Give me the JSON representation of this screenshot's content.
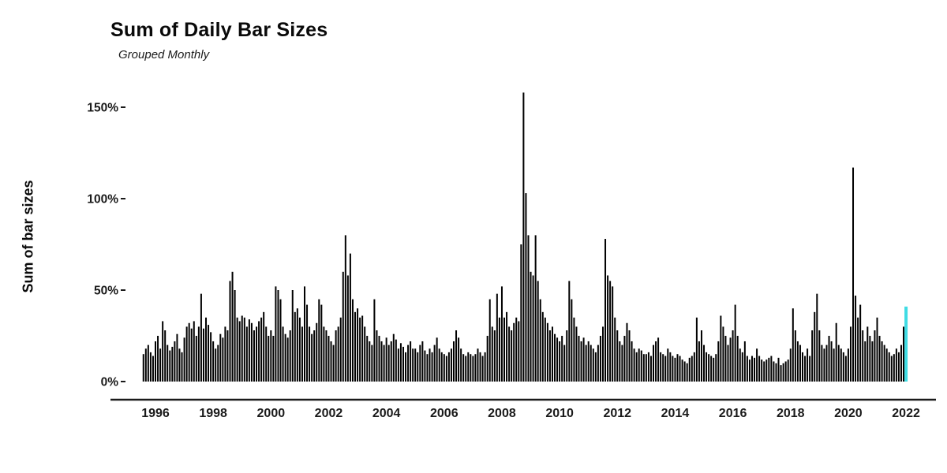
{
  "title": "Sum of Daily Bar Sizes",
  "subtitle": "Grouped Monthly",
  "chart_data": {
    "type": "bar",
    "title": "Sum of Daily Bar Sizes",
    "subtitle": "Grouped Monthly",
    "xlabel": "",
    "ylabel": "Sum of bar sizes",
    "grid": false,
    "legend": "none",
    "unit": "percent",
    "start_month": "1995-08",
    "frequency": "monthly",
    "ylim": [
      0,
      160
    ],
    "y_tick_values": [
      0,
      50,
      100,
      150
    ],
    "y_tick_labels": [
      "0%",
      "50%",
      "100%",
      "150%"
    ],
    "x_tick_years": [
      1996,
      1998,
      2000,
      2002,
      2004,
      2006,
      2008,
      2010,
      2012,
      2014,
      2016,
      2018,
      2020,
      2022
    ],
    "x_tick_labels": [
      "1996",
      "1998",
      "2000",
      "2002",
      "2004",
      "2006",
      "2008",
      "2010",
      "2012",
      "2014",
      "2016",
      "2018",
      "2020",
      "2022"
    ],
    "bar_color": "#000000",
    "highlight_color": "#3FDCE4",
    "highlight_index": 317,
    "axis_color": "#1a1a1a",
    "values": [
      15,
      18,
      20,
      16,
      14,
      22,
      25,
      18,
      33,
      28,
      20,
      17,
      19,
      22,
      26,
      18,
      16,
      24,
      30,
      32,
      29,
      33,
      25,
      30,
      48,
      29,
      35,
      31,
      27,
      22,
      18,
      20,
      26,
      24,
      30,
      28,
      55,
      60,
      50,
      35,
      33,
      36,
      35,
      30,
      34,
      32,
      28,
      30,
      33,
      35,
      38,
      30,
      25,
      28,
      25,
      52,
      50,
      45,
      30,
      26,
      24,
      28,
      50,
      38,
      40,
      35,
      30,
      52,
      42,
      30,
      26,
      28,
      32,
      45,
      42,
      30,
      28,
      25,
      22,
      20,
      28,
      30,
      35,
      60,
      80,
      58,
      70,
      45,
      38,
      40,
      35,
      36,
      30,
      25,
      22,
      20,
      45,
      28,
      25,
      22,
      20,
      24,
      20,
      22,
      26,
      23,
      18,
      21,
      19,
      16,
      20,
      22,
      18,
      18,
      16,
      20,
      22,
      17,
      15,
      18,
      16,
      20,
      24,
      18,
      16,
      15,
      14,
      16,
      18,
      22,
      28,
      24,
      18,
      15,
      14,
      16,
      15,
      14,
      15,
      18,
      16,
      14,
      16,
      25,
      45,
      30,
      28,
      48,
      35,
      52,
      35,
      38,
      30,
      28,
      32,
      35,
      33,
      75,
      158,
      103,
      80,
      60,
      58,
      80,
      55,
      45,
      38,
      35,
      32,
      28,
      30,
      26,
      24,
      22,
      25,
      20,
      28,
      55,
      45,
      35,
      30,
      25,
      22,
      24,
      20,
      22,
      20,
      18,
      16,
      20,
      25,
      30,
      78,
      58,
      55,
      52,
      35,
      28,
      22,
      20,
      25,
      32,
      28,
      22,
      18,
      16,
      18,
      17,
      15,
      15,
      16,
      14,
      20,
      22,
      24,
      16,
      15,
      14,
      18,
      16,
      14,
      13,
      15,
      14,
      12,
      11,
      10,
      13,
      14,
      16,
      35,
      22,
      28,
      20,
      16,
      15,
      14,
      13,
      15,
      22,
      36,
      30,
      25,
      20,
      24,
      28,
      42,
      25,
      18,
      16,
      22,
      14,
      12,
      14,
      13,
      18,
      14,
      12,
      11,
      12,
      13,
      14,
      11,
      10,
      13,
      9,
      10,
      11,
      12,
      18,
      40,
      28,
      22,
      20,
      16,
      14,
      18,
      14,
      28,
      38,
      48,
      28,
      20,
      18,
      20,
      25,
      22,
      18,
      32,
      20,
      18,
      16,
      14,
      18,
      30,
      117,
      47,
      35,
      42,
      28,
      22,
      30,
      25,
      22,
      28,
      35,
      25,
      22,
      20,
      18,
      16,
      14,
      15,
      18,
      16,
      20,
      30,
      41
    ]
  }
}
